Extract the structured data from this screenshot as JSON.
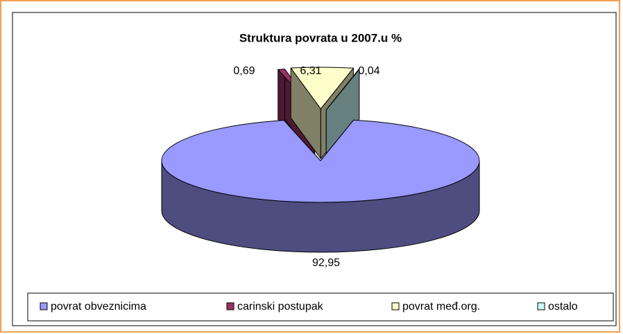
{
  "chart_data": {
    "type": "pie3d",
    "title": "Struktura povrata u 2007.u %",
    "categories": [
      "povrat obveznicima",
      "carinski postupak",
      "povrat međ.org.",
      "ostalo"
    ],
    "values": [
      92.95,
      0.69,
      6.31,
      0.04
    ],
    "value_labels": [
      "92,95",
      "0,69",
      "6,31",
      "0,04"
    ],
    "colors": [
      "#9999ff",
      "#993366",
      "#ffffcc",
      "#ccffff"
    ],
    "legend": "bottom"
  }
}
